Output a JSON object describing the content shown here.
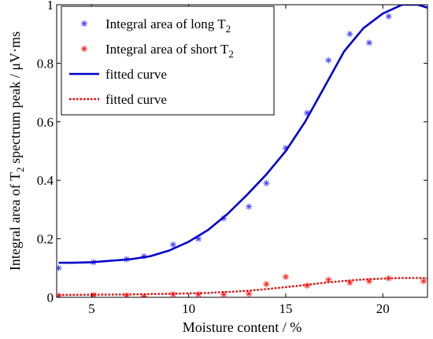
{
  "chart_data": {
    "type": "scatter",
    "xlabel": "Moisture content / %",
    "ylabel_parts": [
      "Integral area of T",
      "2",
      " spectrum peak / μV·ms"
    ],
    "xlim": [
      3.2,
      22.3
    ],
    "ylim": [
      0,
      1.0
    ],
    "xticks": [
      5,
      10,
      15,
      20
    ],
    "yticks": [
      0,
      0.2,
      0.4,
      0.6,
      0.8,
      1
    ],
    "legend_position": "top-left",
    "colors": {
      "long": "#3f3fff",
      "short": "#ff2020",
      "fit_long": "#0000cc",
      "fit_short": "#ee0000"
    },
    "series": [
      {
        "name": "Integral area of long T2",
        "label_parts": [
          "Integral area of long T",
          "2"
        ],
        "kind": "scatter",
        "color": "#3f3fff",
        "points": [
          [
            3.3,
            0.1
          ],
          [
            5.1,
            0.12
          ],
          [
            6.8,
            0.13
          ],
          [
            7.7,
            0.14
          ],
          [
            9.2,
            0.18
          ],
          [
            10.5,
            0.2
          ],
          [
            11.8,
            0.27
          ],
          [
            13.1,
            0.31
          ],
          [
            14.0,
            0.39
          ],
          [
            15.0,
            0.51
          ],
          [
            16.1,
            0.63
          ],
          [
            17.2,
            0.81
          ],
          [
            18.3,
            0.9
          ],
          [
            19.3,
            0.87
          ],
          [
            20.3,
            0.96
          ],
          [
            22.1,
            1.01
          ]
        ]
      },
      {
        "name": "Integral area of short T2",
        "label_parts": [
          "Integral area of short T",
          "2"
        ],
        "kind": "scatter",
        "color": "#ff2020",
        "points": [
          [
            3.3,
            0.005
          ],
          [
            5.1,
            0.008
          ],
          [
            6.8,
            0.006
          ],
          [
            7.7,
            0.003
          ],
          [
            9.2,
            0.01
          ],
          [
            10.5,
            0.01
          ],
          [
            11.8,
            0.01
          ],
          [
            13.1,
            0.012
          ],
          [
            14.0,
            0.045
          ],
          [
            15.0,
            0.07
          ],
          [
            16.1,
            0.04
          ],
          [
            17.2,
            0.06
          ],
          [
            18.3,
            0.05
          ],
          [
            19.3,
            0.055
          ],
          [
            20.3,
            0.065
          ],
          [
            22.1,
            0.055
          ]
        ]
      },
      {
        "name": "fitted curve",
        "label_parts": [
          "fitted curve"
        ],
        "kind": "line",
        "color": "#0000cc",
        "points": [
          [
            3.3,
            0.118
          ],
          [
            4.0,
            0.118
          ],
          [
            5.0,
            0.12
          ],
          [
            6.0,
            0.125
          ],
          [
            7.0,
            0.13
          ],
          [
            8.0,
            0.14
          ],
          [
            9.0,
            0.16
          ],
          [
            10.0,
            0.19
          ],
          [
            11.0,
            0.23
          ],
          [
            12.0,
            0.285
          ],
          [
            13.0,
            0.35
          ],
          [
            14.0,
            0.42
          ],
          [
            15.0,
            0.5
          ],
          [
            16.0,
            0.6
          ],
          [
            17.0,
            0.72
          ],
          [
            18.0,
            0.84
          ],
          [
            19.0,
            0.92
          ],
          [
            20.0,
            0.97
          ],
          [
            21.0,
            1.0
          ],
          [
            21.8,
            1.0
          ],
          [
            22.3,
            0.99
          ]
        ]
      },
      {
        "name": "fitted curve",
        "label_parts": [
          "fitted curve"
        ],
        "kind": "dotted-line",
        "color": "#ee0000",
        "points": [
          [
            3.3,
            0.008
          ],
          [
            5.0,
            0.009
          ],
          [
            7.0,
            0.01
          ],
          [
            9.0,
            0.012
          ],
          [
            11.0,
            0.015
          ],
          [
            13.0,
            0.022
          ],
          [
            14.0,
            0.028
          ],
          [
            15.0,
            0.035
          ],
          [
            16.0,
            0.042
          ],
          [
            17.0,
            0.05
          ],
          [
            18.0,
            0.056
          ],
          [
            19.0,
            0.061
          ],
          [
            20.0,
            0.064
          ],
          [
            21.0,
            0.066
          ],
          [
            22.0,
            0.066
          ],
          [
            22.3,
            0.065
          ]
        ]
      }
    ]
  }
}
